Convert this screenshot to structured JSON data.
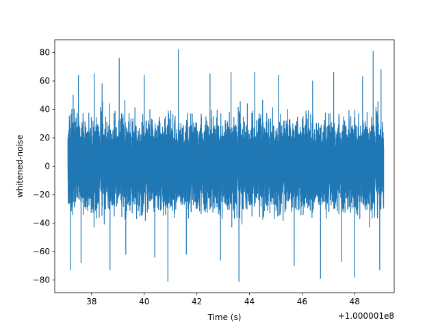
{
  "chart_data": {
    "type": "line",
    "title": "",
    "xlabel": "Time (s)",
    "ylabel": "whitened-noise",
    "x_offset_label": "+1.000001e8",
    "xlim": [
      36.6,
      49.5
    ],
    "ylim": [
      -89,
      89
    ],
    "x_ticks": [
      38,
      40,
      42,
      44,
      46,
      48
    ],
    "x_tick_labels": [
      "38",
      "40",
      "42",
      "44",
      "46",
      "48"
    ],
    "y_ticks": [
      -80,
      -60,
      -40,
      -20,
      0,
      20,
      40,
      60,
      80
    ],
    "y_tick_labels": [
      "−80",
      "−60",
      "−40",
      "−20",
      "0",
      "20",
      "40",
      "60",
      "80"
    ],
    "grid": false,
    "series": [
      {
        "color": "#1f77b4",
        "x_range": [
          37.1,
          49.1
        ],
        "samples": 12000,
        "typical_envelope": [
          -40,
          43
        ],
        "max": 82,
        "min": -81,
        "spikes": [
          {
            "x": 37.2,
            "y": -73
          },
          {
            "x": 37.3,
            "y": 50
          },
          {
            "x": 37.5,
            "y": 64
          },
          {
            "x": 37.6,
            "y": -68
          },
          {
            "x": 38.1,
            "y": 65
          },
          {
            "x": 38.4,
            "y": 58
          },
          {
            "x": 38.7,
            "y": -73
          },
          {
            "x": 39.05,
            "y": 76
          },
          {
            "x": 39.3,
            "y": -62
          },
          {
            "x": 40.0,
            "y": 64
          },
          {
            "x": 40.4,
            "y": -64
          },
          {
            "x": 40.9,
            "y": -81
          },
          {
            "x": 41.3,
            "y": 82
          },
          {
            "x": 41.6,
            "y": -62
          },
          {
            "x": 42.5,
            "y": 65
          },
          {
            "x": 42.9,
            "y": -66
          },
          {
            "x": 43.3,
            "y": 66
          },
          {
            "x": 43.6,
            "y": -81
          },
          {
            "x": 44.2,
            "y": 66
          },
          {
            "x": 45.1,
            "y": 64
          },
          {
            "x": 45.7,
            "y": -70
          },
          {
            "x": 46.4,
            "y": 60
          },
          {
            "x": 46.7,
            "y": -79
          },
          {
            "x": 47.2,
            "y": 66
          },
          {
            "x": 47.5,
            "y": -67
          },
          {
            "x": 48.0,
            "y": -78
          },
          {
            "x": 48.3,
            "y": 63
          },
          {
            "x": 48.7,
            "y": 81
          },
          {
            "x": 48.95,
            "y": -73
          },
          {
            "x": 49.0,
            "y": 68
          }
        ]
      }
    ]
  }
}
